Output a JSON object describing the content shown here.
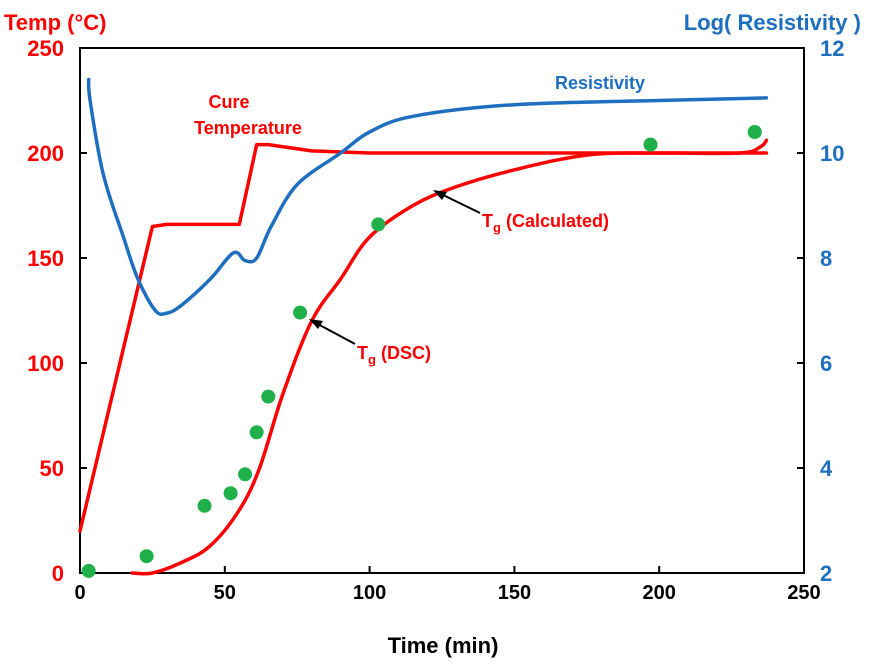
{
  "chart_data": {
    "type": "line",
    "xlabel": "Time (min)",
    "ylabel_left": "Temp (°C)",
    "ylabel_right_prefix": "Log(",
    "ylabel_right_main": " Resistivity",
    "ylabel_right_suffix": " )",
    "xlim": [
      0,
      250
    ],
    "ylim_left": [
      0,
      250
    ],
    "ylim_right": [
      2,
      12
    ],
    "x_ticks": [
      "0",
      "50",
      "100",
      "150",
      "200",
      "250"
    ],
    "y_left_ticks": [
      "0",
      "50",
      "100",
      "150",
      "200",
      "250"
    ],
    "y_right_ticks": [
      "2",
      "4",
      "6",
      "8",
      "10",
      "12"
    ],
    "grid": false,
    "colors": {
      "temp": "#ff0000",
      "resistivity": "#1f6fc0",
      "dsc": "#1fb04a",
      "frame": "#000000"
    },
    "series": [
      {
        "key": "cure_temperature",
        "axis": "left",
        "points": [
          [
            0,
            20
          ],
          [
            25,
            165
          ],
          [
            30,
            166
          ],
          [
            55,
            166
          ],
          [
            61,
            204
          ],
          [
            65,
            204
          ],
          [
            80,
            201
          ],
          [
            100,
            200
          ],
          [
            150,
            200
          ],
          [
            200,
            200
          ],
          [
            237,
            200
          ]
        ]
      },
      {
        "key": "resistivity",
        "name": "Resistivity",
        "axis": "right",
        "points": [
          [
            3,
            11.4
          ],
          [
            3.5,
            11.0
          ],
          [
            8,
            9.6
          ],
          [
            15,
            8.4
          ],
          [
            20,
            7.6
          ],
          [
            26,
            7.0
          ],
          [
            30,
            6.95
          ],
          [
            35,
            7.1
          ],
          [
            45,
            7.6
          ],
          [
            53,
            8.1
          ],
          [
            57,
            7.95
          ],
          [
            61,
            8.0
          ],
          [
            66,
            8.6
          ],
          [
            75,
            9.4
          ],
          [
            90,
            10.0
          ],
          [
            100,
            10.4
          ],
          [
            115,
            10.7
          ],
          [
            150,
            10.92
          ],
          [
            200,
            11.0
          ],
          [
            237,
            11.05
          ]
        ]
      },
      {
        "key": "tg_calculated",
        "axis": "left",
        "points": [
          [
            18,
            0
          ],
          [
            25,
            0
          ],
          [
            35,
            5
          ],
          [
            45,
            13
          ],
          [
            55,
            30
          ],
          [
            62,
            50
          ],
          [
            70,
            85
          ],
          [
            80,
            120
          ],
          [
            90,
            140
          ],
          [
            100,
            160
          ],
          [
            115,
            175
          ],
          [
            130,
            184
          ],
          [
            150,
            192
          ],
          [
            175,
            199
          ],
          [
            200,
            200
          ],
          [
            228,
            200
          ],
          [
            235,
            203
          ],
          [
            237,
            206
          ]
        ]
      }
    ],
    "points_dsc": {
      "axis": "left",
      "points": [
        [
          3,
          1
        ],
        [
          23,
          8
        ],
        [
          43,
          32
        ],
        [
          52,
          38
        ],
        [
          57,
          47
        ],
        [
          61,
          67
        ],
        [
          65,
          84
        ],
        [
          76,
          124
        ],
        [
          103,
          166
        ],
        [
          197,
          204
        ],
        [
          233,
          210
        ]
      ]
    },
    "annotations": {
      "cure_line1": "Cure",
      "cure_line2": "Temperature",
      "resistivity": "Resistivity",
      "tg_calc_main": "T",
      "tg_calc_sub": "g",
      "tg_calc_rest": " (Calculated)",
      "tg_dsc_main": "T",
      "tg_dsc_sub": "g",
      "tg_dsc_rest": " (DSC)"
    }
  }
}
